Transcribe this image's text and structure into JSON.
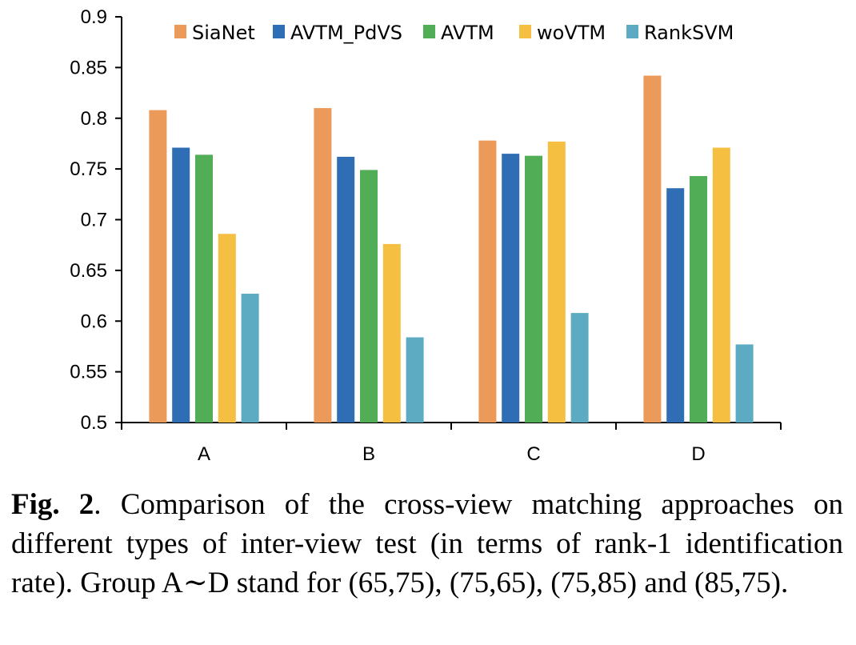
{
  "chart_data": {
    "type": "bar",
    "categories": [
      "A",
      "B",
      "C",
      "D"
    ],
    "series": [
      {
        "name": "SiaNet",
        "color": "#EB9A5A",
        "values": [
          0.808,
          0.81,
          0.778,
          0.842
        ]
      },
      {
        "name": "AVTM_PdVS",
        "color": "#2F6EB5",
        "values": [
          0.771,
          0.762,
          0.765,
          0.731
        ]
      },
      {
        "name": "AVTM",
        "color": "#52AD57",
        "values": [
          0.764,
          0.749,
          0.763,
          0.743
        ]
      },
      {
        "name": "woVTM",
        "color": "#F5BF41",
        "values": [
          0.686,
          0.676,
          0.777,
          0.771
        ]
      },
      {
        "name": "RankSVM",
        "color": "#5DABC3",
        "values": [
          0.627,
          0.584,
          0.608,
          0.577
        ]
      }
    ],
    "ylim": [
      0.5,
      0.9
    ],
    "yticks": [
      "0.5",
      "0.55",
      "0.6",
      "0.65",
      "0.7",
      "0.75",
      "0.8",
      "0.85",
      "0.9"
    ],
    "xlabel": "",
    "ylabel": "",
    "title": "",
    "grid": false,
    "legend_position": "top"
  },
  "caption": {
    "label": "Fig. 2",
    "text": ".  Comparison of the cross-view matching approaches on different types of inter-view test (in terms of rank-1 identification rate). Group A∼D stand for (65,75), (75,65), (75,85) and (85,75)."
  }
}
